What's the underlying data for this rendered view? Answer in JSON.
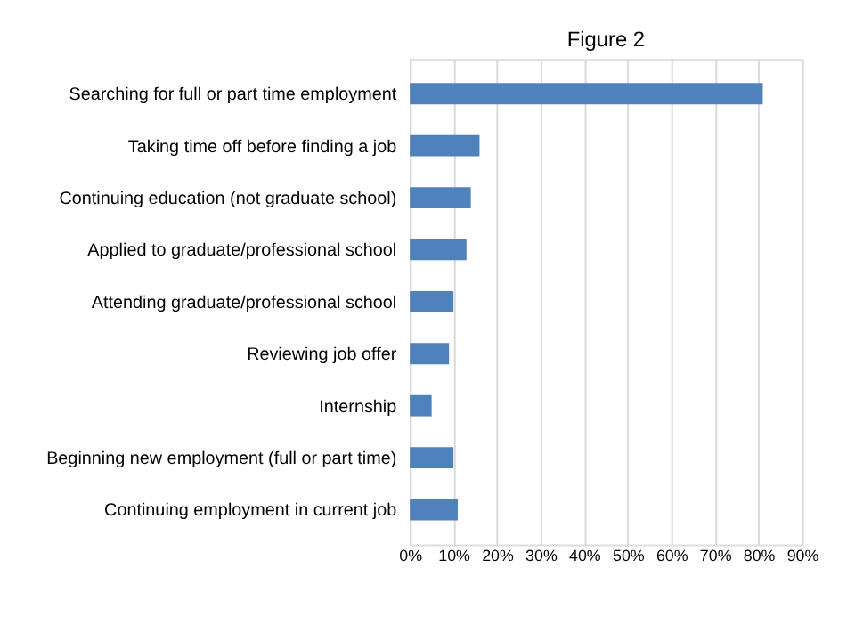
{
  "chart_data": {
    "type": "bar",
    "orientation": "horizontal",
    "title": "Figure 2",
    "categories": [
      "Searching for full or part time employment",
      "Taking time off before finding a job",
      "Continuing education (not graduate school)",
      "Applied to graduate/professional school",
      "Attending graduate/professional school",
      "Reviewing job offer",
      "Internship",
      "Beginning new employment (full or part time)",
      "Continuing employment in current job"
    ],
    "values": [
      81,
      16,
      14,
      13,
      10,
      9,
      5,
      10,
      11
    ],
    "color": "#4f81bd",
    "xlim": [
      0,
      90
    ],
    "xticks": [
      {
        "value": 0,
        "label": "0%"
      },
      {
        "value": 10,
        "label": "10%"
      },
      {
        "value": 20,
        "label": "20%"
      },
      {
        "value": 30,
        "label": "30%"
      },
      {
        "value": 40,
        "label": "40%"
      },
      {
        "value": 50,
        "label": "50%"
      },
      {
        "value": 60,
        "label": "60%"
      },
      {
        "value": 70,
        "label": "70%"
      },
      {
        "value": 80,
        "label": "80%"
      },
      {
        "value": 90,
        "label": "90%"
      }
    ],
    "grid": "x"
  }
}
